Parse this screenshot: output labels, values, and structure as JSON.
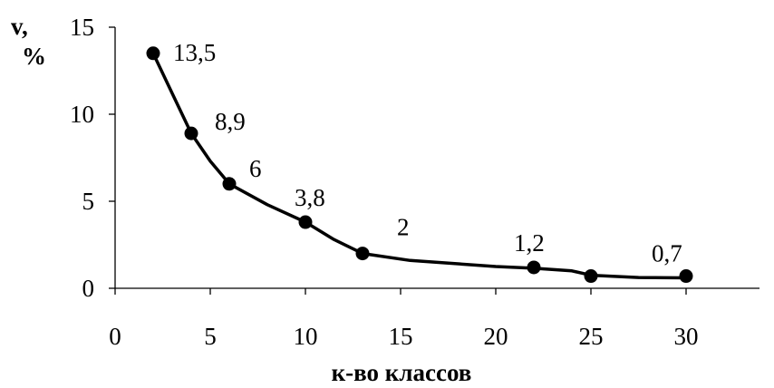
{
  "chart_data": {
    "type": "line",
    "title": "",
    "xlabel": "к-во классов",
    "ylabel_line1": "v,",
    "ylabel_line2": "%",
    "xlim": [
      0,
      35
    ],
    "ylim": [
      0,
      15
    ],
    "xticks": [
      0,
      5,
      10,
      15,
      20,
      25,
      30
    ],
    "yticks": [
      0,
      5,
      10,
      15
    ],
    "grid": false,
    "legend": "none",
    "series": [
      {
        "x": [
          2,
          4,
          6,
          10,
          13,
          22,
          25,
          30
        ],
        "y": [
          13.5,
          8.9,
          6,
          3.8,
          2,
          1.2,
          0.7,
          0.7
        ],
        "marked": [
          true,
          true,
          true,
          true,
          true,
          true,
          true,
          true
        ],
        "labels": [
          "13,5",
          "8,9",
          "6",
          "3,8",
          "2",
          "1,2",
          "",
          "0,7"
        ],
        "smooth_x": [
          2,
          3,
          4,
          5,
          6,
          8,
          10,
          11.5,
          13,
          15.5,
          20,
          22,
          24,
          25,
          27.5,
          30
        ],
        "smooth_y": [
          13.5,
          11.2,
          8.9,
          7.3,
          6,
          4.8,
          3.8,
          2.8,
          2,
          1.6,
          1.25,
          1.15,
          1.0,
          0.75,
          0.62,
          0.6
        ]
      }
    ]
  }
}
